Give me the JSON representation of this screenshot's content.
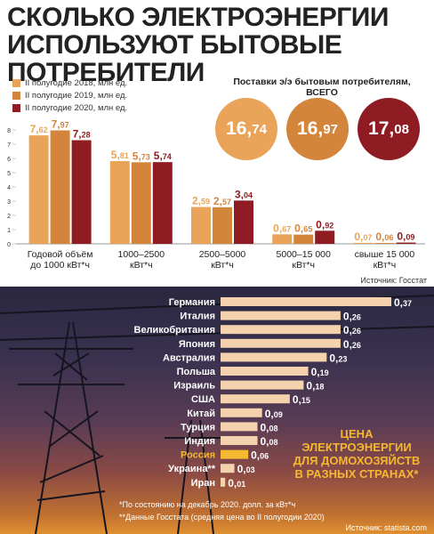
{
  "title_lines": [
    "СКОЛЬКО ЭЛЕКТРОЭНЕРГИИ",
    "ИСПОЛЬЗУЮТ БЫТОВЫЕ ПОТРЕБИТЕЛИ"
  ],
  "colors": {
    "s2018": "#e9a45a",
    "s2019": "#d3853c",
    "s2020": "#8e1c22",
    "bar_h": "#f3d2ad"
  },
  "chart_data": [
    {
      "type": "bar",
      "title": "",
      "categories": [
        [
          "Годовой объём",
          "до 1000 кВт*ч"
        ],
        [
          "1000–2500",
          "кВт*ч"
        ],
        [
          "2500–5000",
          "кВт*ч"
        ],
        [
          "5000–15 000",
          "кВт*ч"
        ],
        [
          "свыше 15 000",
          "кВт*ч"
        ]
      ],
      "series": [
        {
          "name": "II полугодие 2018, млн ед.",
          "values": [
            7.62,
            5.81,
            2.59,
            0.67,
            0.07
          ],
          "labels": [
            [
              "7,",
              "62"
            ],
            [
              "5,",
              "81"
            ],
            [
              "2,",
              "59"
            ],
            [
              "0,",
              "67"
            ],
            [
              "0,",
              "07"
            ]
          ]
        },
        {
          "name": "II полугодие 2019, млн ед.",
          "values": [
            7.97,
            5.73,
            2.57,
            0.65,
            0.06
          ],
          "labels": [
            [
              "7,",
              "97"
            ],
            [
              "5,",
              "73"
            ],
            [
              "2,",
              "57"
            ],
            [
              "0,",
              "65"
            ],
            [
              "0,",
              "06"
            ]
          ]
        },
        {
          "name": "II полугодие 2020, млн ед.",
          "values": [
            7.28,
            5.74,
            3.04,
            0.92,
            0.09
          ],
          "labels": [
            [
              "7,",
              "28"
            ],
            [
              "5,",
              "74"
            ],
            [
              "3,",
              "04"
            ],
            [
              "0,",
              "92"
            ],
            [
              "0,",
              "09"
            ]
          ]
        }
      ],
      "yticks": [
        "0",
        "1",
        "2",
        "3",
        "4",
        "5",
        "6",
        "7",
        "8"
      ],
      "ylim": [
        0,
        8
      ],
      "legend": "top-left"
    },
    {
      "type": "bar",
      "orientation": "horizontal",
      "title": "",
      "categories": [
        "Германия",
        "Италия",
        "Великобритания",
        "Япония",
        "Австралия",
        "Польша",
        "Израиль",
        "США",
        "Китай",
        "Турция",
        "Индия",
        "Россия",
        "Украина**",
        "Иран"
      ],
      "values": [
        0.37,
        0.26,
        0.26,
        0.26,
        0.23,
        0.19,
        0.18,
        0.15,
        0.09,
        0.08,
        0.08,
        0.06,
        0.03,
        0.01
      ],
      "labels": [
        [
          "0,",
          "37"
        ],
        [
          "0,",
          "26"
        ],
        [
          "0,",
          "26"
        ],
        [
          "0,",
          "26"
        ],
        [
          "0,",
          "23"
        ],
        [
          "0,",
          "19"
        ],
        [
          "0,",
          "18"
        ],
        [
          "0,",
          "15"
        ],
        [
          "0,",
          "09"
        ],
        [
          "0,",
          "08"
        ],
        [
          "0,",
          "08"
        ],
        [
          "0,",
          "06"
        ],
        [
          "0,",
          "03"
        ],
        [
          "0,",
          "01"
        ]
      ],
      "highlight": "Россия"
    }
  ],
  "totals": {
    "label_lines": [
      "Поставки э/э бытовым потребителям,",
      "ВСЕГО"
    ],
    "items": [
      [
        "16,",
        "74"
      ],
      [
        "16,",
        "97"
      ],
      [
        "17,",
        "08"
      ]
    ]
  },
  "source1": "Источник:  Госстат",
  "price_title_lines": [
    "ЦЕНА",
    "ЭЛЕКТРОЭНЕРГИИ",
    "ДЛЯ ДОМОХОЗЯЙСТВ",
    "В РАЗНЫХ СТРАНАХ*"
  ],
  "footnotes": [
    "*По состоянию на декабрь 2020. долл. за кВт*ч",
    "**Данные Госстата (средняя цена во II полугодии 2020)"
  ],
  "source2": "Источник:  statista.com"
}
